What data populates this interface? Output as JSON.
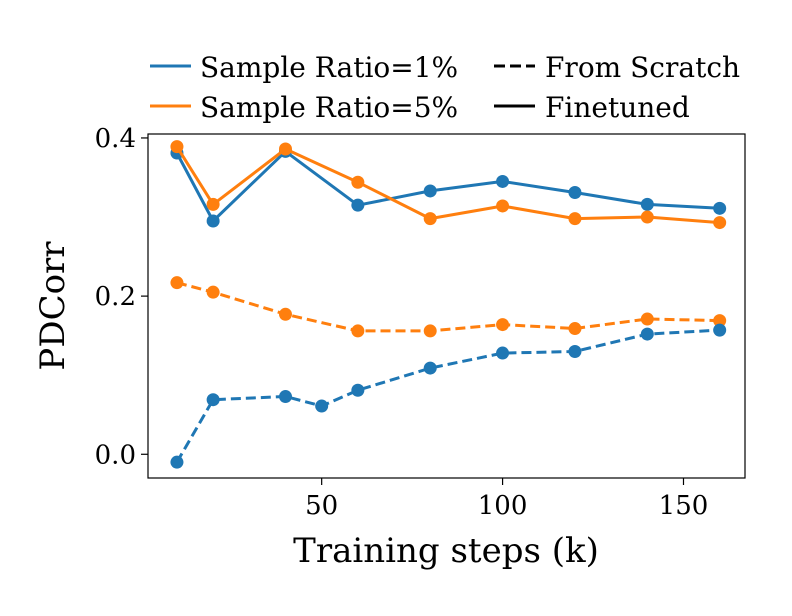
{
  "chart_data": {
    "type": "line",
    "xlabel": "Training steps (k)",
    "ylabel": "PDCorr",
    "xlim": [
      2,
      167
    ],
    "ylim": [
      -0.03,
      0.405
    ],
    "xticks": [
      50,
      100,
      150
    ],
    "yticks": [
      0.0,
      0.2,
      0.4
    ],
    "xtick_labels": [
      "50",
      "100",
      "150"
    ],
    "ytick_labels": [
      "0.0",
      "0.2",
      "0.4"
    ],
    "grid": false,
    "legend_position": "top",
    "series": [
      {
        "name": "Sample Ratio=1%",
        "label": "Sample Ratio=1%",
        "style": "solid",
        "color": "#1f77b4",
        "x": [
          10,
          20,
          40,
          60,
          80,
          100,
          120,
          140,
          160
        ],
        "y": [
          0.381,
          0.295,
          0.383,
          0.315,
          0.333,
          0.345,
          0.331,
          0.316,
          0.311
        ]
      },
      {
        "name": "Sample Ratio=5%",
        "label": "Sample Ratio=5%",
        "style": "solid",
        "color": "#ff7f0e",
        "x": [
          10,
          20,
          40,
          60,
          80,
          100,
          120,
          140,
          160
        ],
        "y": [
          0.389,
          0.316,
          0.386,
          0.344,
          0.298,
          0.314,
          0.298,
          0.3,
          0.293
        ]
      },
      {
        "name": "Sample Ratio=5%",
        "label": "Sample Ratio=5%",
        "style": "dashed",
        "color": "#ff7f0e",
        "x": [
          10,
          20,
          40,
          60,
          80,
          100,
          120,
          140,
          160
        ],
        "y": [
          0.217,
          0.205,
          0.177,
          0.156,
          0.156,
          0.164,
          0.159,
          0.171,
          0.169
        ]
      },
      {
        "name": "Sample Ratio=1%",
        "label": "Sample Ratio=1%",
        "style": "dashed",
        "color": "#1f77b4",
        "x": [
          10,
          20,
          40,
          50,
          60,
          80,
          100,
          120,
          140,
          160
        ],
        "y": [
          -0.01,
          0.069,
          0.073,
          0.061,
          0.081,
          0.109,
          0.128,
          0.13,
          0.152,
          0.157
        ]
      }
    ]
  },
  "legend": {
    "color_entries": [
      {
        "label": "Sample Ratio=1%",
        "color": "#1f77b4"
      },
      {
        "label": "Sample Ratio=5%",
        "color": "#ff7f0e"
      }
    ],
    "style_entries": [
      {
        "label": "From Scratch",
        "style": "dashed"
      },
      {
        "label": "Finetuned",
        "style": "solid"
      }
    ]
  }
}
